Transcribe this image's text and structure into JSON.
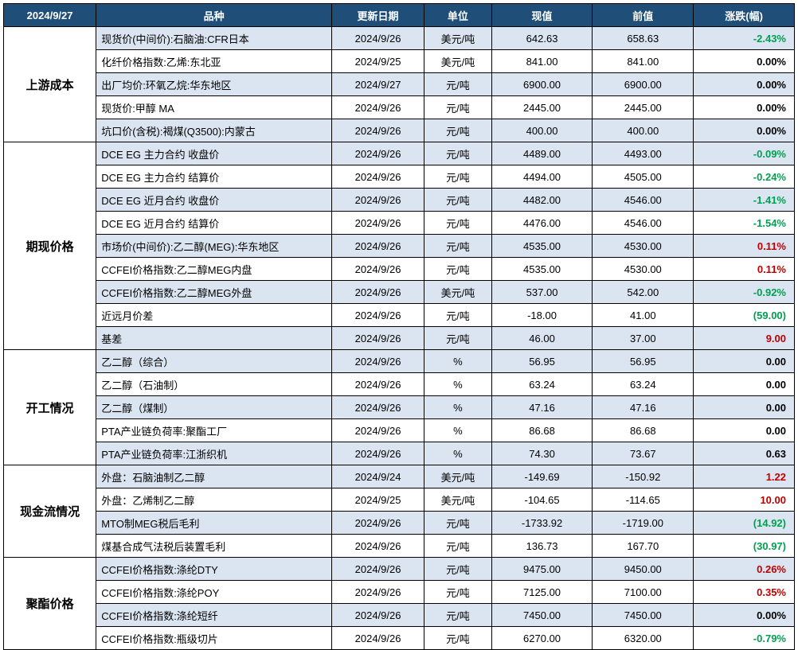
{
  "colors": {
    "header_bg": "#1f4e79",
    "header_fg": "#ffffff",
    "stripe_bg": "#dbe5f1",
    "plain_bg": "#ffffff",
    "border": "#000000",
    "pos": "#c00000",
    "neg": "#00a050",
    "neu": "#000000"
  },
  "header": {
    "date": "2024/9/27",
    "cols": [
      "品种",
      "更新日期",
      "单位",
      "现值",
      "前值",
      "涨跌(幅)"
    ]
  },
  "sections": [
    {
      "cat": "上游成本",
      "rows": [
        {
          "name": "现货价(中间价):石脑油:CFR日本",
          "date": "2024/9/26",
          "unit": "美元/吨",
          "cur": "642.63",
          "prev": "658.63",
          "chg": "-2.43%",
          "dir": "neg"
        },
        {
          "name": "化纤价格指数:乙烯:东北亚",
          "date": "2024/9/25",
          "unit": "美元/吨",
          "cur": "841.00",
          "prev": "841.00",
          "chg": "0.00%",
          "dir": "neu"
        },
        {
          "name": "出厂均价:环氧乙烷:华东地区",
          "date": "2024/9/27",
          "unit": "元/吨",
          "cur": "6900.00",
          "prev": "6900.00",
          "chg": "0.00%",
          "dir": "neu"
        },
        {
          "name": "现货价:甲醇 MA",
          "date": "2024/9/26",
          "unit": "元/吨",
          "cur": "2445.00",
          "prev": "2445.00",
          "chg": "0.00%",
          "dir": "neu"
        },
        {
          "name": "坑口价(含税):褐煤(Q3500):内蒙古",
          "date": "2024/9/26",
          "unit": "元/吨",
          "cur": "400.00",
          "prev": "400.00",
          "chg": "0.00%",
          "dir": "neu"
        }
      ]
    },
    {
      "cat": "期现价格",
      "rows": [
        {
          "name": "DCE EG 主力合约 收盘价",
          "date": "2024/9/26",
          "unit": "元/吨",
          "cur": "4489.00",
          "prev": "4493.00",
          "chg": "-0.09%",
          "dir": "neg"
        },
        {
          "name": "DCE EG 主力合约 结算价",
          "date": "2024/9/26",
          "unit": "元/吨",
          "cur": "4494.00",
          "prev": "4505.00",
          "chg": "-0.24%",
          "dir": "neg"
        },
        {
          "name": "DCE EG 近月合约 收盘价",
          "date": "2024/9/26",
          "unit": "元/吨",
          "cur": "4482.00",
          "prev": "4546.00",
          "chg": "-1.41%",
          "dir": "neg"
        },
        {
          "name": "DCE EG 近月合约 结算价",
          "date": "2024/9/26",
          "unit": "元/吨",
          "cur": "4476.00",
          "prev": "4546.00",
          "chg": "-1.54%",
          "dir": "neg"
        },
        {
          "name": "市场价(中间价):乙二醇(MEG):华东地区",
          "date": "2024/9/26",
          "unit": "元/吨",
          "cur": "4535.00",
          "prev": "4530.00",
          "chg": "0.11%",
          "dir": "pos"
        },
        {
          "name": "CCFEI价格指数:乙二醇MEG内盘",
          "date": "2024/9/26",
          "unit": "元/吨",
          "cur": "4535.00",
          "prev": "4530.00",
          "chg": "0.11%",
          "dir": "pos"
        },
        {
          "name": "CCFEI价格指数:乙二醇MEG外盘",
          "date": "2024/9/26",
          "unit": "美元/吨",
          "cur": "537.00",
          "prev": "542.00",
          "chg": "-0.92%",
          "dir": "neg"
        },
        {
          "name": "近远月价差",
          "date": "2024/9/26",
          "unit": "元/吨",
          "cur": "-18.00",
          "prev": "41.00",
          "chg": "(59.00)",
          "dir": "neg-paren"
        },
        {
          "name": "基差",
          "date": "2024/9/26",
          "unit": "元/吨",
          "cur": "46.00",
          "prev": "37.00",
          "chg": "9.00",
          "dir": "pos"
        }
      ]
    },
    {
      "cat": "开工情况",
      "rows": [
        {
          "name": "乙二醇（综合）",
          "date": "2024/9/26",
          "unit": "%",
          "cur": "56.95",
          "prev": "56.95",
          "chg": "0.00",
          "dir": "neu"
        },
        {
          "name": "乙二醇（石油制）",
          "date": "2024/9/26",
          "unit": "%",
          "cur": "63.24",
          "prev": "63.24",
          "chg": "0.00",
          "dir": "neu"
        },
        {
          "name": "乙二醇（煤制）",
          "date": "2024/9/26",
          "unit": "%",
          "cur": "47.16",
          "prev": "47.16",
          "chg": "0.00",
          "dir": "neu"
        },
        {
          "name": "PTA产业链负荷率:聚酯工厂",
          "date": "2024/9/26",
          "unit": "%",
          "cur": "86.68",
          "prev": "86.68",
          "chg": "0.00",
          "dir": "neu"
        },
        {
          "name": "PTA产业链负荷率:江浙织机",
          "date": "2024/9/26",
          "unit": "%",
          "cur": "74.30",
          "prev": "73.67",
          "chg": "0.63",
          "dir": "neu"
        }
      ]
    },
    {
      "cat": "现金流情况",
      "rows": [
        {
          "name": "外盘：石脑油制乙二醇",
          "date": "2024/9/24",
          "unit": "美元/吨",
          "cur": "-149.69",
          "prev": "-150.92",
          "chg": "1.22",
          "dir": "pos"
        },
        {
          "name": "外盘：乙烯制乙二醇",
          "date": "2024/9/25",
          "unit": "美元/吨",
          "cur": "-104.65",
          "prev": "-114.65",
          "chg": "10.00",
          "dir": "pos"
        },
        {
          "name": "MTO制MEG税后毛利",
          "date": "2024/9/26",
          "unit": "元/吨",
          "cur": "-1733.92",
          "prev": "-1719.00",
          "chg": "(14.92)",
          "dir": "neg-paren"
        },
        {
          "name": "煤基合成气法税后装置毛利",
          "date": "2024/9/26",
          "unit": "元/吨",
          "cur": "136.73",
          "prev": "167.70",
          "chg": "(30.97)",
          "dir": "neg-paren"
        }
      ]
    },
    {
      "cat": "聚酯价格",
      "rows": [
        {
          "name": "CCFEI价格指数:涤纶DTY",
          "date": "2024/9/26",
          "unit": "元/吨",
          "cur": "9475.00",
          "prev": "9450.00",
          "chg": "0.26%",
          "dir": "pos"
        },
        {
          "name": "CCFEI价格指数:涤纶POY",
          "date": "2024/9/26",
          "unit": "元/吨",
          "cur": "7125.00",
          "prev": "7100.00",
          "chg": "0.35%",
          "dir": "pos"
        },
        {
          "name": "CCFEI价格指数:涤纶短纤",
          "date": "2024/9/26",
          "unit": "元/吨",
          "cur": "7450.00",
          "prev": "7450.00",
          "chg": "0.00%",
          "dir": "neu"
        },
        {
          "name": "CCFEI价格指数:瓶级切片",
          "date": "2024/9/26",
          "unit": "元/吨",
          "cur": "6270.00",
          "prev": "6320.00",
          "chg": "-0.79%",
          "dir": "neg"
        }
      ]
    }
  ]
}
